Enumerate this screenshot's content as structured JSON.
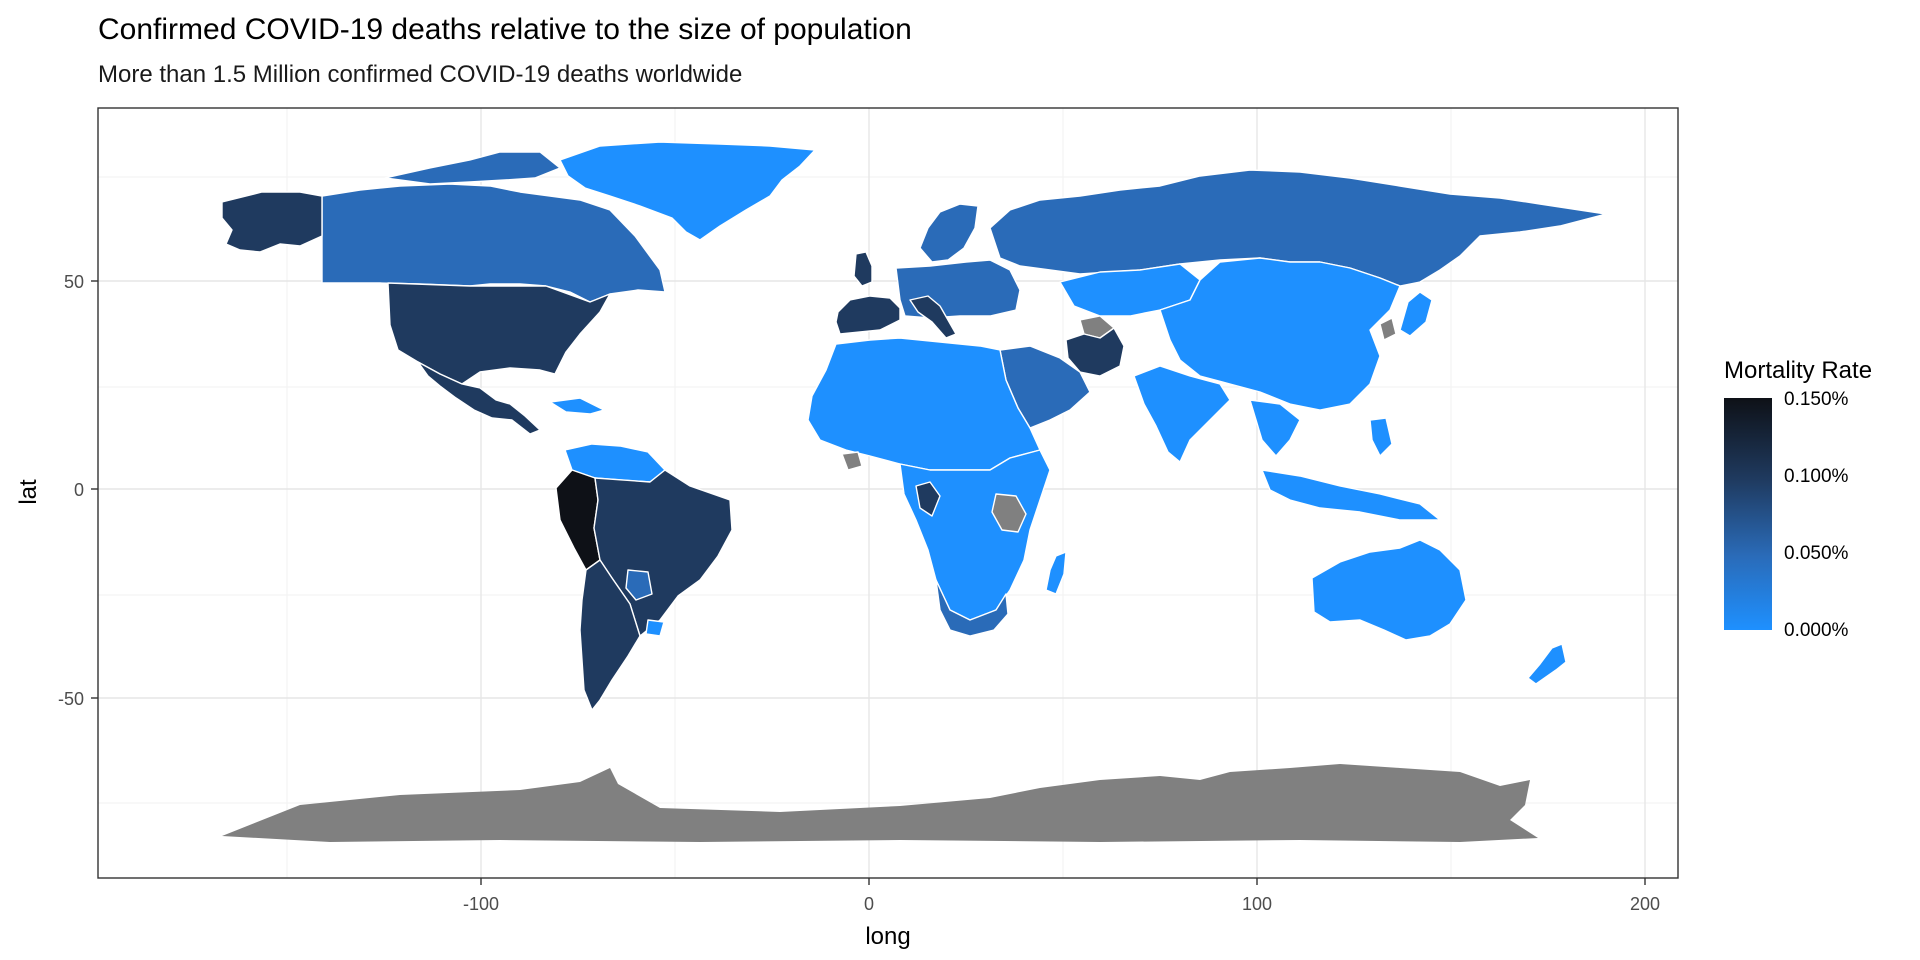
{
  "title": "Confirmed COVID-19 deaths relative to the size of population",
  "subtitle": "More than 1.5 Million confirmed COVID-19 deaths worldwide",
  "axes": {
    "x_label": "long",
    "y_label": "lat",
    "x_ticks": [
      -100,
      0,
      100,
      200
    ],
    "y_ticks": [
      50,
      0,
      -50
    ],
    "xlim": [
      -198,
      208
    ],
    "ylim": [
      -93,
      91
    ]
  },
  "legend": {
    "title": "Mortality Rate",
    "labels": [
      "0.150%",
      "0.100%",
      "0.050%",
      "0.000%"
    ],
    "colors": {
      "high": "#0e1117",
      "mid": "#2a6bb8",
      "low": "#1e90ff",
      "na": "#808080"
    }
  },
  "chart_data": {
    "type": "heatmap",
    "title": "Confirmed COVID-19 deaths relative to the size of population",
    "subtitle": "More than 1.5 Million confirmed COVID-19 deaths worldwide",
    "xlabel": "long",
    "ylabel": "lat",
    "xlim": [
      -198,
      208
    ],
    "ylim": [
      -93,
      91
    ],
    "grid": true,
    "legend_placement": "right",
    "colors": {
      "high": "#0e1117",
      "mid": "#2a6bb8",
      "low": "#1e90ff",
      "na": "#808080"
    }
  }
}
